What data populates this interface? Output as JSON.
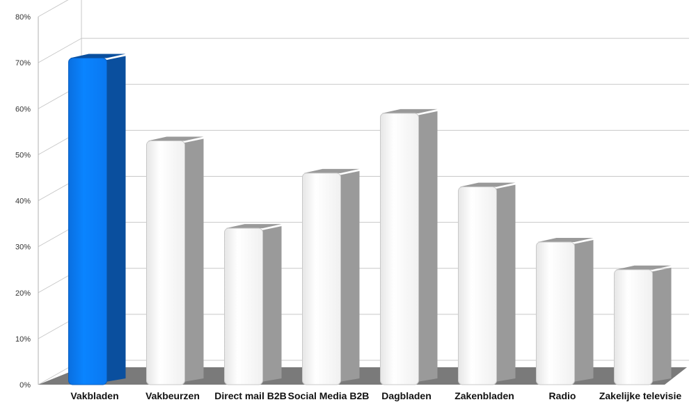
{
  "chart_data": {
    "type": "bar",
    "title": "",
    "xlabel": "",
    "ylabel": "",
    "categories": [
      "Vakbladen",
      "Vakbeurzen",
      "Direct mail B2B",
      "Social Media B2B",
      "Dagbladen",
      "Zakenbladen",
      "Radio",
      "Zakelijke televisie"
    ],
    "values": [
      71,
      53,
      34,
      46,
      59,
      43,
      31,
      25
    ],
    "ylim": [
      0,
      80
    ],
    "yticks": [
      "0%",
      "10%",
      "20%",
      "30%",
      "40%",
      "50%",
      "60%",
      "70%",
      "80%"
    ],
    "grid": true,
    "highlight_index": 0,
    "colors": {
      "highlight_front": "#0a84ff",
      "highlight_side": "#0a4f9e",
      "default_front": "#ffffff",
      "default_side": "#9a9a9a",
      "floor": "#7a7a7a",
      "grid": "#c8c8c8"
    }
  }
}
